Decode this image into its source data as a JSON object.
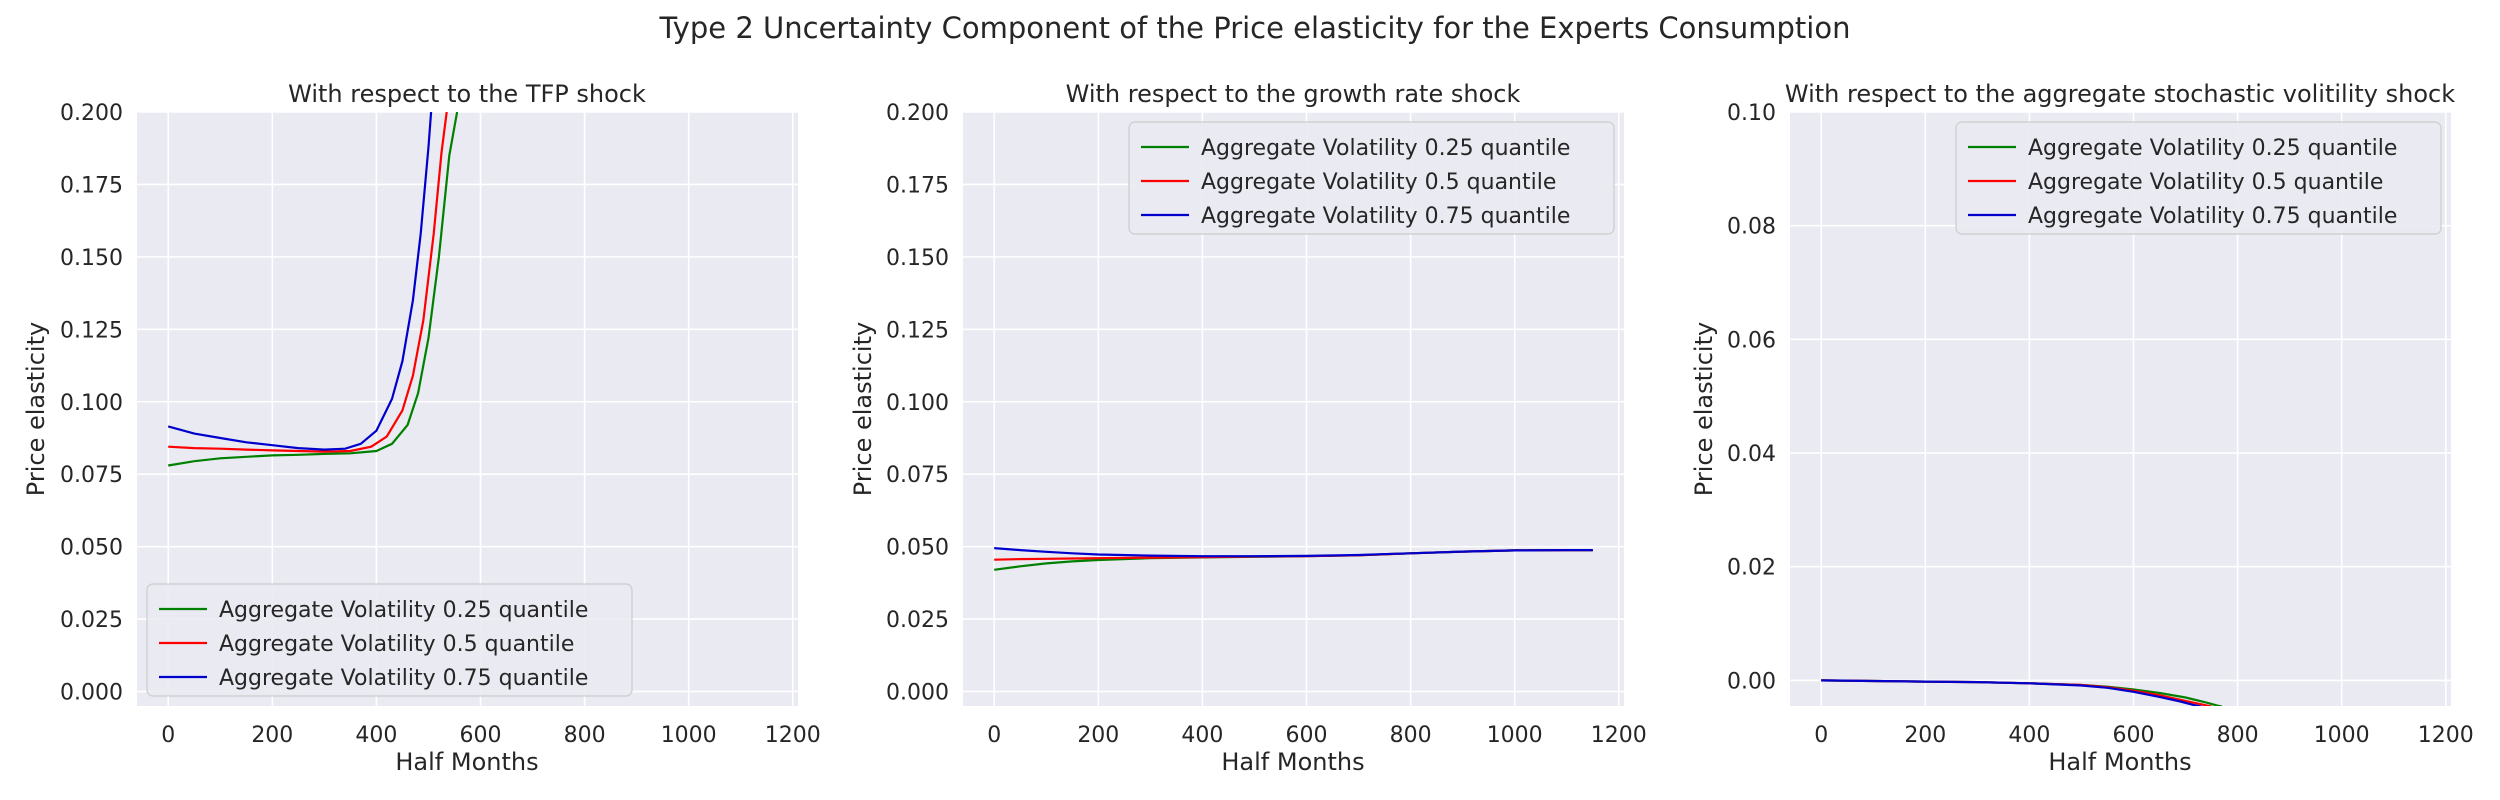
{
  "figure": {
    "title": "Type 2 Uncertainty Component of the Price elasticity for the Experts Consumption",
    "background": "#ffffff",
    "plot_background": "#eaeaf2",
    "grid_color": "#ffffff"
  },
  "chart_data": [
    {
      "type": "line",
      "title": "With respect to the TFP shock",
      "xlabel": "Half Months",
      "ylabel": "Price elasticity",
      "xlim": [
        -60,
        1210
      ],
      "ylim": [
        -0.005,
        0.2
      ],
      "xticks": [
        0,
        200,
        400,
        600,
        800,
        1000,
        1200
      ],
      "xtick_labels": [
        "0",
        "200",
        "400",
        "600",
        "800",
        "1000",
        "1200"
      ],
      "yticks": [
        0.0,
        0.025,
        0.05,
        0.075,
        0.1,
        0.125,
        0.15,
        0.175,
        0.2
      ],
      "ytick_labels": [
        "0.000",
        "0.025",
        "0.050",
        "0.075",
        "0.100",
        "0.125",
        "0.150",
        "0.175",
        "0.200"
      ],
      "grid": true,
      "legend_location": "lower-left",
      "series": [
        {
          "name": "Aggregate Volatility 0.25 quantile",
          "color": "#008000",
          "x": [
            0,
            50,
            100,
            150,
            200,
            250,
            300,
            350,
            400,
            430,
            460,
            480,
            500,
            520,
            540,
            555
          ],
          "y": [
            0.078,
            0.0795,
            0.0805,
            0.081,
            0.0815,
            0.0817,
            0.082,
            0.0822,
            0.083,
            0.0855,
            0.092,
            0.103,
            0.122,
            0.15,
            0.185,
            0.2
          ]
        },
        {
          "name": "Aggregate Volatility 0.5 quantile",
          "color": "#ff0000",
          "x": [
            0,
            50,
            100,
            150,
            200,
            250,
            300,
            350,
            390,
            420,
            450,
            470,
            490,
            510,
            525,
            535
          ],
          "y": [
            0.0845,
            0.084,
            0.0838,
            0.0835,
            0.0832,
            0.083,
            0.0828,
            0.083,
            0.0845,
            0.088,
            0.097,
            0.109,
            0.128,
            0.158,
            0.186,
            0.2
          ]
        },
        {
          "name": "Aggregate Volatility 0.75 quantile",
          "color": "#0000cd",
          "x": [
            0,
            50,
            100,
            150,
            200,
            250,
            300,
            340,
            370,
            400,
            430,
            450,
            470,
            485,
            500,
            505
          ],
          "y": [
            0.0915,
            0.089,
            0.0875,
            0.086,
            0.085,
            0.084,
            0.0835,
            0.0838,
            0.0855,
            0.09,
            0.101,
            0.114,
            0.135,
            0.158,
            0.188,
            0.2
          ]
        }
      ]
    },
    {
      "type": "line",
      "title": "With respect to the growth rate shock",
      "xlabel": "Half Months",
      "ylabel": "Price elasticity",
      "xlim": [
        -60,
        1210
      ],
      "ylim": [
        -0.005,
        0.2
      ],
      "xticks": [
        0,
        200,
        400,
        600,
        800,
        1000,
        1200
      ],
      "xtick_labels": [
        "0",
        "200",
        "400",
        "600",
        "800",
        "1000",
        "1200"
      ],
      "yticks": [
        0.0,
        0.025,
        0.05,
        0.075,
        0.1,
        0.125,
        0.15,
        0.175,
        0.2
      ],
      "ytick_labels": [
        "0.000",
        "0.025",
        "0.050",
        "0.075",
        "0.100",
        "0.125",
        "0.150",
        "0.175",
        "0.200"
      ],
      "grid": true,
      "legend_location": "upper-right",
      "series": [
        {
          "name": "Aggregate Volatility 0.25 quantile",
          "color": "#008000",
          "x": [
            0,
            50,
            100,
            150,
            200,
            300,
            400,
            500,
            600,
            700,
            800,
            900,
            1000,
            1100,
            1150
          ],
          "y": [
            0.042,
            0.0432,
            0.0442,
            0.0449,
            0.0454,
            0.046,
            0.0463,
            0.0465,
            0.0467,
            0.047,
            0.0477,
            0.0483,
            0.0487,
            0.0488,
            0.0488
          ]
        },
        {
          "name": "Aggregate Volatility 0.5 quantile",
          "color": "#ff0000",
          "x": [
            0,
            50,
            100,
            150,
            200,
            300,
            400,
            500,
            600,
            700,
            800,
            900,
            1000,
            1100,
            1150
          ],
          "y": [
            0.0455,
            0.0457,
            0.0458,
            0.0459,
            0.046,
            0.0462,
            0.0464,
            0.0466,
            0.0467,
            0.047,
            0.0477,
            0.0483,
            0.0487,
            0.0488,
            0.0488
          ]
        },
        {
          "name": "Aggregate Volatility 0.75 quantile",
          "color": "#0000cd",
          "x": [
            0,
            50,
            100,
            150,
            200,
            300,
            400,
            500,
            600,
            700,
            800,
            900,
            1000,
            1100,
            1150
          ],
          "y": [
            0.0495,
            0.0488,
            0.0482,
            0.0477,
            0.0473,
            0.0469,
            0.0467,
            0.0467,
            0.0468,
            0.0471,
            0.0477,
            0.0483,
            0.0487,
            0.0488,
            0.0488
          ]
        }
      ]
    },
    {
      "type": "line",
      "title": "With respect to the aggregate stochastic volitility shock",
      "xlabel": "Half Months",
      "ylabel": "Price elasticity",
      "xlim": [
        -60,
        1210
      ],
      "ylim": [
        -0.0045,
        0.1
      ],
      "xticks": [
        0,
        200,
        400,
        600,
        800,
        1000,
        1200
      ],
      "xtick_labels": [
        "0",
        "200",
        "400",
        "600",
        "800",
        "1000",
        "1200"
      ],
      "yticks": [
        0.0,
        0.02,
        0.04,
        0.06,
        0.08,
        0.1
      ],
      "ytick_labels": [
        "0.00",
        "0.02",
        "0.04",
        "0.06",
        "0.08",
        "0.10"
      ],
      "grid": true,
      "legend_location": "upper-right",
      "series": [
        {
          "name": "Aggregate Volatility 0.25 quantile",
          "color": "#008000",
          "x": [
            0,
            100,
            200,
            300,
            400,
            500,
            550,
            600,
            650,
            700,
            740,
            760,
            770
          ],
          "y": [
            0.0,
            -0.0001,
            -0.0002,
            -0.0003,
            -0.0005,
            -0.0008,
            -0.0011,
            -0.0016,
            -0.0022,
            -0.003,
            -0.0039,
            -0.0044,
            -0.0046
          ]
        },
        {
          "name": "Aggregate Volatility 0.5 quantile",
          "color": "#ff0000",
          "x": [
            0,
            100,
            200,
            300,
            400,
            500,
            550,
            600,
            650,
            700,
            730,
            750
          ],
          "y": [
            0.0,
            -0.0001,
            -0.0002,
            -0.0003,
            -0.0005,
            -0.0008,
            -0.0012,
            -0.0018,
            -0.0026,
            -0.0036,
            -0.0042,
            -0.0046
          ]
        },
        {
          "name": "Aggregate Volatility 0.75 quantile",
          "color": "#0000cd",
          "x": [
            0,
            100,
            200,
            300,
            400,
            500,
            550,
            600,
            650,
            690,
            715,
            730
          ],
          "y": [
            0.0,
            -0.0001,
            -0.0002,
            -0.0003,
            -0.0005,
            -0.0009,
            -0.0013,
            -0.002,
            -0.0029,
            -0.0037,
            -0.0043,
            -0.0046
          ]
        }
      ]
    }
  ]
}
